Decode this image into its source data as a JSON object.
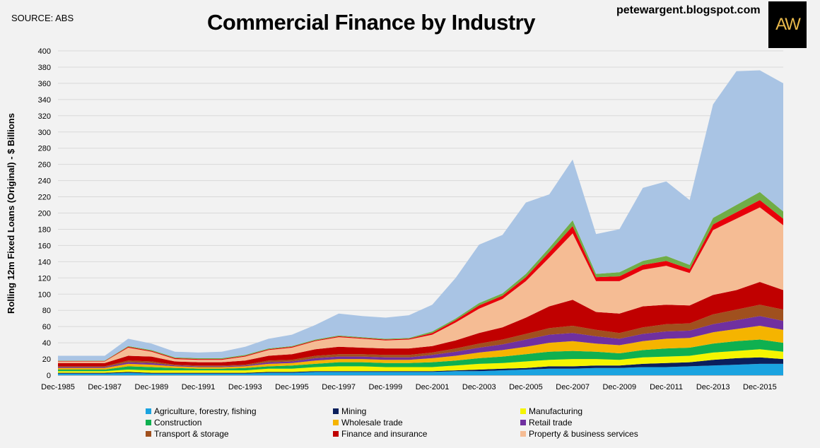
{
  "source": "SOURCE: ABS",
  "title": "Commercial Finance by Industry",
  "blog": "petewargent.blogspot.com",
  "logo_text": "AW",
  "chart_data": {
    "type": "area",
    "stacked": true,
    "title": "Commercial Finance by Industry",
    "ylabel": "Rolling 12m Fixed Loans (Original) - $ Billions",
    "xlabel": "",
    "ylim": [
      0,
      400
    ],
    "yticks": [
      0,
      20,
      40,
      60,
      80,
      100,
      120,
      140,
      160,
      180,
      200,
      220,
      240,
      260,
      280,
      300,
      320,
      340,
      360,
      380,
      400
    ],
    "x_tick_labels": [
      "Dec-1985",
      "Dec-1987",
      "Dec-1989",
      "Dec-1991",
      "Dec-1993",
      "Dec-1995",
      "Dec-1997",
      "Dec-1999",
      "Dec-2001",
      "Dec-2003",
      "Dec-2005",
      "Dec-2007",
      "Dec-2009",
      "Dec-2011",
      "Dec-2013",
      "Dec-2015"
    ],
    "x": [
      "Dec-1985",
      "Dec-1986",
      "Dec-1987",
      "Dec-1988",
      "Dec-1989",
      "Dec-1990",
      "Dec-1991",
      "Dec-1992",
      "Dec-1993",
      "Dec-1994",
      "Dec-1995",
      "Dec-1996",
      "Dec-1997",
      "Dec-1998",
      "Dec-1999",
      "Dec-2000",
      "Dec-2001",
      "Dec-2002",
      "Dec-2003",
      "Dec-2004",
      "Dec-2005",
      "Dec-2006",
      "Dec-2007",
      "Dec-2008",
      "Dec-2009",
      "Dec-2010",
      "Dec-2011",
      "Dec-2012",
      "Dec-2013",
      "Dec-2014",
      "Dec-2015",
      "Jun-2016"
    ],
    "grid": true,
    "legend_position": "bottom",
    "series": [
      {
        "name": "Agriculture, forestry, fishing",
        "color": "#1aa3e0",
        "values": [
          2,
          2,
          2,
          3,
          2,
          2,
          2,
          2,
          2,
          3,
          3,
          4,
          4,
          4,
          4,
          4,
          4,
          5,
          5,
          6,
          7,
          8,
          8,
          9,
          9,
          10,
          10,
          11,
          12,
          13,
          14,
          14
        ]
      },
      {
        "name": "Mining",
        "color": "#0b1f5c",
        "values": [
          1,
          1,
          1,
          1,
          1,
          1,
          1,
          1,
          1,
          1,
          1,
          1,
          1,
          1,
          1,
          1,
          1,
          1,
          2,
          2,
          2,
          3,
          3,
          3,
          3,
          4,
          5,
          5,
          7,
          8,
          8,
          6
        ]
      },
      {
        "name": "Manufacturing",
        "color": "#f5f500",
        "values": [
          2,
          2,
          2,
          3,
          3,
          3,
          3,
          3,
          3,
          4,
          4,
          5,
          6,
          6,
          5,
          5,
          5,
          6,
          7,
          7,
          8,
          8,
          9,
          8,
          7,
          8,
          8,
          8,
          9,
          9,
          10,
          9
        ]
      },
      {
        "name": "Construction",
        "color": "#0fb050",
        "values": [
          2,
          2,
          2,
          4,
          4,
          3,
          2,
          2,
          3,
          3,
          4,
          4,
          5,
          5,
          5,
          5,
          6,
          6,
          7,
          8,
          9,
          10,
          10,
          9,
          8,
          9,
          10,
          10,
          11,
          12,
          12,
          11
        ]
      },
      {
        "name": "Wholesale trade",
        "color": "#f5b400",
        "values": [
          2,
          2,
          2,
          3,
          3,
          2,
          2,
          2,
          2,
          3,
          3,
          4,
          4,
          4,
          4,
          4,
          5,
          6,
          7,
          8,
          9,
          11,
          12,
          10,
          10,
          11,
          12,
          12,
          14,
          15,
          17,
          16
        ]
      },
      {
        "name": "Retail trade",
        "color": "#7030a0",
        "values": [
          1,
          1,
          1,
          2,
          2,
          1,
          1,
          1,
          1,
          2,
          2,
          3,
          3,
          3,
          3,
          3,
          4,
          5,
          6,
          7,
          9,
          10,
          10,
          9,
          8,
          9,
          9,
          9,
          10,
          11,
          12,
          11
        ]
      },
      {
        "name": "Transport & storage",
        "color": "#a0501e",
        "values": [
          1,
          1,
          1,
          2,
          2,
          1,
          1,
          1,
          1,
          2,
          2,
          3,
          3,
          3,
          3,
          3,
          3,
          4,
          5,
          6,
          7,
          8,
          9,
          8,
          7,
          8,
          9,
          9,
          12,
          13,
          14,
          14
        ]
      },
      {
        "name": "Finance and insurance",
        "color": "#c00000",
        "values": [
          4,
          4,
          4,
          6,
          6,
          4,
          4,
          4,
          5,
          6,
          7,
          8,
          9,
          8,
          8,
          8,
          8,
          10,
          13,
          15,
          20,
          27,
          32,
          22,
          24,
          26,
          24,
          22,
          24,
          24,
          28,
          24
        ]
      },
      {
        "name": "Property & business services",
        "color": "#f5bc94",
        "values": [
          2,
          2,
          2,
          10,
          6,
          3,
          3,
          3,
          5,
          7,
          8,
          10,
          12,
          11,
          10,
          11,
          14,
          22,
          30,
          35,
          45,
          60,
          82,
          38,
          40,
          45,
          48,
          40,
          80,
          88,
          92,
          80
        ]
      },
      {
        "name": "",
        "color": "#e8000a",
        "values": [
          0.5,
          0.5,
          0.5,
          1,
          1,
          1,
          1,
          1,
          1,
          1,
          1,
          1,
          1,
          1,
          1,
          1,
          2,
          3,
          4,
          4,
          5,
          7,
          9,
          5,
          6,
          6,
          6,
          5,
          7,
          8,
          9,
          8
        ]
      },
      {
        "name": "",
        "color": "#70ad47",
        "values": [
          0.5,
          0.5,
          0.5,
          1,
          1,
          1,
          1,
          1,
          1,
          1,
          1,
          1,
          1,
          1,
          1,
          1,
          2,
          2,
          3,
          3,
          4,
          5,
          7,
          4,
          5,
          5,
          6,
          5,
          8,
          9,
          10,
          9
        ]
      },
      {
        "name": "",
        "color": "#a9c4e4",
        "values": [
          6,
          6,
          6,
          9,
          8,
          7,
          7,
          8,
          10,
          12,
          14,
          18,
          27,
          26,
          26,
          28,
          33,
          50,
          72,
          72,
          88,
          66,
          75,
          49,
          53,
          90,
          92,
          80,
          140,
          165,
          150,
          158
        ]
      }
    ]
  },
  "legend_items": [
    {
      "label": "Agriculture, forestry, fishing",
      "color": "#1aa3e0"
    },
    {
      "label": "Mining",
      "color": "#0b1f5c"
    },
    {
      "label": "Manufacturing",
      "color": "#f5f500"
    },
    {
      "label": "Construction",
      "color": "#0fb050"
    },
    {
      "label": "Wholesale trade",
      "color": "#f5b400"
    },
    {
      "label": "Retail trade",
      "color": "#7030a0"
    },
    {
      "label": "Transport & storage",
      "color": "#a0501e"
    },
    {
      "label": "Finance and insurance",
      "color": "#c00000"
    },
    {
      "label": "Property & business services",
      "color": "#f5bc94"
    }
  ]
}
